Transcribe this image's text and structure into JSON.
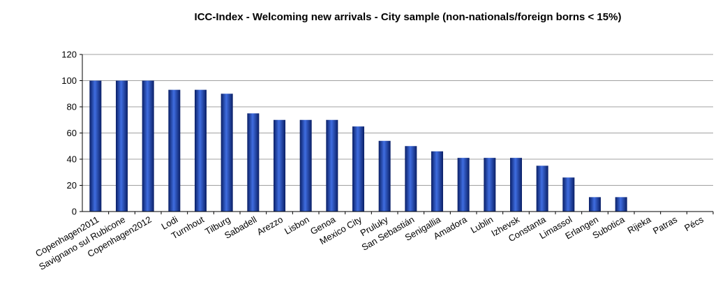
{
  "chart_data": {
    "type": "bar",
    "title": "ICC-Index - Welcoming new arrivals -  City sample (non-nationals/foreign borns < 15%)",
    "xlabel": "",
    "ylabel": "",
    "ylim": [
      0,
      120
    ],
    "yticks": [
      0,
      20,
      40,
      60,
      80,
      100,
      120
    ],
    "grid": true,
    "legend": "none",
    "categories": [
      "Copenhagen2011",
      "Savignano sul Rubicone",
      "Copenhagen2012",
      "Lodi",
      "Turnhout",
      "Tilburg",
      "Sabadell",
      "Arezzo",
      "Lisbon",
      "Genoa",
      "Mexico City",
      "Pruluky",
      "San Sebastián",
      "Senigallia",
      "Amadora",
      "Lublin",
      "Izhevsk",
      "Constanta",
      "Limassol",
      "Erlangen",
      "Subotica",
      "Rijeka",
      "Patras",
      "Pécs"
    ],
    "values": [
      100,
      100,
      100,
      93,
      93,
      90,
      75,
      70,
      70,
      70,
      65,
      54,
      50,
      46,
      41,
      41,
      41,
      35,
      26,
      11,
      11,
      0,
      0,
      0
    ],
    "colors": {
      "bar_dark": "#0a1f66",
      "bar_mid": "#2a55c8",
      "bar_light": "#3f6de0",
      "grid": "#a0a0a0",
      "axis": "#000000"
    }
  }
}
